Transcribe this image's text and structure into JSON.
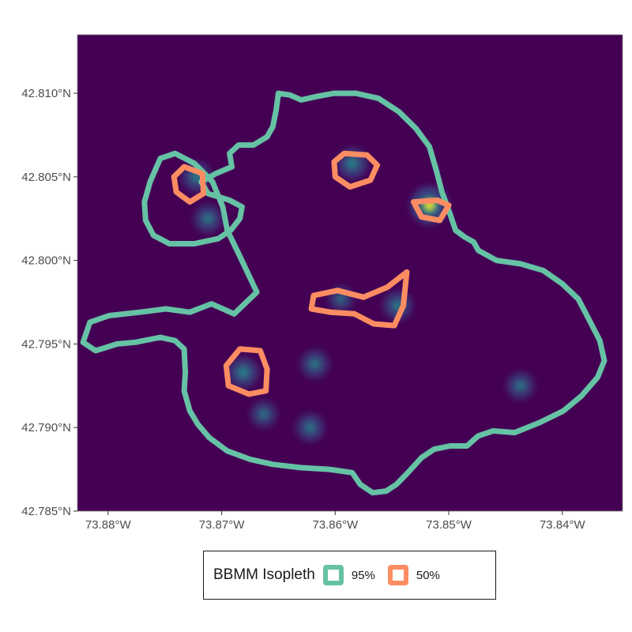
{
  "colors": {
    "background": "#440154",
    "iso95": "#66c2a5",
    "iso50": "#fc8d62",
    "density_low": "#3b528b",
    "density_mid": "#21918c",
    "density_high": "#fde725"
  },
  "legend": {
    "title": "BBMM Isopleth",
    "items": [
      {
        "label": "95%",
        "color_key": "iso95"
      },
      {
        "label": "50%",
        "color_key": "iso50"
      }
    ]
  },
  "chart_data": {
    "type": "heatmap",
    "title": "",
    "xlabel": "",
    "ylabel": "",
    "xlim": [
      -73.8827,
      -73.8347
    ],
    "ylim": [
      42.785,
      42.8135
    ],
    "x_ticks": [
      {
        "value": -73.88,
        "label": "73.88°W"
      },
      {
        "value": -73.87,
        "label": "73.87°W"
      },
      {
        "value": -73.86,
        "label": "73.86°W"
      },
      {
        "value": -73.85,
        "label": "73.85°W"
      },
      {
        "value": -73.84,
        "label": "73.84°W"
      }
    ],
    "y_ticks": [
      {
        "value": 42.785,
        "label": "42.785°N"
      },
      {
        "value": 42.79,
        "label": "42.790°N"
      },
      {
        "value": 42.795,
        "label": "42.795°N"
      },
      {
        "value": 42.8,
        "label": "42.800°N"
      },
      {
        "value": 42.805,
        "label": "42.805°N"
      },
      {
        "value": 42.81,
        "label": "42.810°N"
      }
    ],
    "grid": false,
    "legend_position": "bottom",
    "density_hotspots": [
      {
        "lon": -73.8517,
        "lat": 42.8033,
        "intensity": 1.0
      },
      {
        "lon": -73.8585,
        "lat": 42.8058,
        "intensity": 0.55
      },
      {
        "lon": -73.8722,
        "lat": 42.805,
        "intensity": 0.5
      },
      {
        "lon": -73.8681,
        "lat": 42.7933,
        "intensity": 0.55
      },
      {
        "lon": -73.8545,
        "lat": 42.7973,
        "intensity": 0.45
      },
      {
        "lon": -73.8712,
        "lat": 42.8025,
        "intensity": 0.4
      },
      {
        "lon": -73.8618,
        "lat": 42.7938,
        "intensity": 0.4
      },
      {
        "lon": -73.8622,
        "lat": 42.79,
        "intensity": 0.4
      },
      {
        "lon": -73.8663,
        "lat": 42.7908,
        "intensity": 0.3
      },
      {
        "lon": -73.8437,
        "lat": 42.7925,
        "intensity": 0.35
      },
      {
        "lon": -73.8595,
        "lat": 42.7977,
        "intensity": 0.2
      }
    ],
    "isopleths": [
      {
        "level": "95%",
        "polygons": [
          [
            [
              -73.8669,
              42.7981
            ],
            [
              -73.8689,
              42.7968
            ],
            [
              -73.8709,
              42.7974
            ],
            [
              -73.8728,
              42.7969
            ],
            [
              -73.8749,
              42.7971
            ],
            [
              -73.8772,
              42.7969
            ],
            [
              -73.8799,
              42.7967
            ],
            [
              -73.8816,
              42.7963
            ],
            [
              -73.8822,
              42.7951
            ],
            [
              -73.8811,
              42.7946
            ],
            [
              -73.8792,
              42.795
            ],
            [
              -73.8776,
              42.7951
            ],
            [
              -73.8754,
              42.7954
            ],
            [
              -73.8741,
              42.7952
            ],
            [
              -73.8733,
              42.7947
            ],
            [
              -73.8732,
              42.7933
            ],
            [
              -73.8733,
              42.7922
            ],
            [
              -73.8728,
              42.791
            ],
            [
              -73.8721,
              42.7902
            ],
            [
              -73.8711,
              42.7894
            ],
            [
              -73.8695,
              42.7886
            ],
            [
              -73.8675,
              42.7881
            ],
            [
              -73.8655,
              42.7878
            ],
            [
              -73.863,
              42.7876
            ],
            [
              -73.8605,
              42.7875
            ],
            [
              -73.8585,
              42.7873
            ],
            [
              -73.8578,
              42.7866
            ],
            [
              -73.8567,
              42.7861
            ],
            [
              -73.8555,
              42.7862
            ],
            [
              -73.8546,
              42.7866
            ],
            [
              -73.8536,
              42.7873
            ],
            [
              -73.8524,
              42.7882
            ],
            [
              -73.8513,
              42.7887
            ],
            [
              -73.8499,
              42.7889
            ],
            [
              -73.8484,
              42.7889
            ],
            [
              -73.8474,
              42.7895
            ],
            [
              -73.8461,
              42.7898
            ],
            [
              -73.8442,
              42.7897
            ],
            [
              -73.842,
              42.7903
            ],
            [
              -73.8399,
              42.791
            ],
            [
              -73.8383,
              42.7919
            ],
            [
              -73.8369,
              42.793
            ],
            [
              -73.8363,
              42.794
            ],
            [
              -73.8367,
              42.7952
            ],
            [
              -73.8376,
              42.7964
            ],
            [
              -73.8386,
              42.7977
            ],
            [
              -73.84,
              42.7986
            ],
            [
              -73.8417,
              42.7994
            ],
            [
              -73.8437,
              42.7998
            ],
            [
              -73.8458,
              42.8
            ],
            [
              -73.8474,
              42.8006
            ],
            [
              -73.8478,
              42.8011
            ],
            [
              -73.8486,
              42.8014
            ],
            [
              -73.8494,
              42.8018
            ],
            [
              -73.8499,
              42.8028
            ],
            [
              -73.8506,
              42.8041
            ],
            [
              -73.8511,
              42.8054
            ],
            [
              -73.8517,
              42.8068
            ],
            [
              -73.8529,
              42.8079
            ],
            [
              -73.8544,
              42.8089
            ],
            [
              -73.8562,
              42.8097
            ],
            [
              -73.8582,
              42.81
            ],
            [
              -73.8601,
              42.81
            ],
            [
              -73.8617,
              42.8098
            ],
            [
              -73.863,
              42.8096
            ],
            [
              -73.864,
              42.8099
            ],
            [
              -73.865,
              42.81
            ],
            [
              -73.8652,
              42.809
            ],
            [
              -73.8655,
              42.808
            ],
            [
              -73.866,
              42.8074
            ],
            [
              -73.8672,
              42.8069
            ],
            [
              -73.8685,
              42.8069
            ],
            [
              -73.8693,
              42.8064
            ],
            [
              -73.8691,
              42.8056
            ],
            [
              -73.8705,
              42.8052
            ],
            [
              -73.8718,
              42.8047
            ],
            [
              -73.8712,
              42.804
            ],
            [
              -73.8693,
              42.8036
            ],
            [
              -73.8682,
              42.8032
            ],
            [
              -73.8684,
              42.8025
            ],
            [
              -73.8692,
              42.8018
            ],
            [
              -73.8703,
              42.8013
            ],
            [
              -73.8724,
              42.801
            ],
            [
              -73.8746,
              42.801
            ],
            [
              -73.876,
              42.8015
            ],
            [
              -73.8767,
              42.8024
            ],
            [
              -73.8768,
              42.8035
            ],
            [
              -73.8763,
              42.8047
            ],
            [
              -73.8754,
              42.8061
            ],
            [
              -73.8741,
              42.8064
            ],
            [
              -73.8724,
              42.8058
            ],
            [
              -73.8708,
              42.8047
            ],
            [
              -73.8699,
              42.8032
            ],
            [
              -73.8695,
              42.8018
            ],
            [
              -73.8685,
              42.8004
            ],
            [
              -73.8676,
              42.7991
            ],
            [
              -73.8669,
              42.7981
            ]
          ]
        ]
      },
      {
        "level": "50%",
        "polygons": [
          [
            [
              -73.8575,
              42.7978
            ],
            [
              -73.8554,
              42.7984
            ],
            [
              -73.8537,
              42.7993
            ],
            [
              -73.854,
              42.7973
            ],
            [
              -73.8548,
              42.7961
            ],
            [
              -73.8566,
              42.7962
            ],
            [
              -73.8583,
              42.7968
            ],
            [
              -73.8604,
              42.7969
            ],
            [
              -73.8621,
              42.7971
            ],
            [
              -73.8619,
              42.7979
            ],
            [
              -73.8598,
              42.7982
            ],
            [
              -73.8575,
              42.7978
            ]
          ],
          [
            [
              -73.8592,
              42.8064
            ],
            [
              -73.8572,
              42.8063
            ],
            [
              -73.8563,
              42.8057
            ],
            [
              -73.8569,
              42.8048
            ],
            [
              -73.8587,
              42.8044
            ],
            [
              -73.86,
              42.805
            ],
            [
              -73.8601,
              42.8059
            ],
            [
              -73.8592,
              42.8064
            ]
          ],
          [
            [
              -73.851,
              42.8036
            ],
            [
              -73.85,
              42.8033
            ],
            [
              -73.8508,
              42.8024
            ],
            [
              -73.8524,
              42.8026
            ],
            [
              -73.8531,
              42.8035
            ],
            [
              -73.851,
              42.8036
            ]
          ],
          [
            [
              -73.8733,
              42.8056
            ],
            [
              -73.8717,
              42.8052
            ],
            [
              -73.8716,
              42.804
            ],
            [
              -73.8728,
              42.8035
            ],
            [
              -73.874,
              42.8041
            ],
            [
              -73.8742,
              42.805
            ],
            [
              -73.8733,
              42.8056
            ]
          ],
          [
            [
              -73.8684,
              42.7947
            ],
            [
              -73.8666,
              42.7946
            ],
            [
              -73.866,
              42.7935
            ],
            [
              -73.8661,
              42.7922
            ],
            [
              -73.8676,
              42.792
            ],
            [
              -73.8694,
              42.7925
            ],
            [
              -73.8696,
              42.7937
            ],
            [
              -73.8684,
              42.7947
            ]
          ]
        ]
      }
    ]
  }
}
